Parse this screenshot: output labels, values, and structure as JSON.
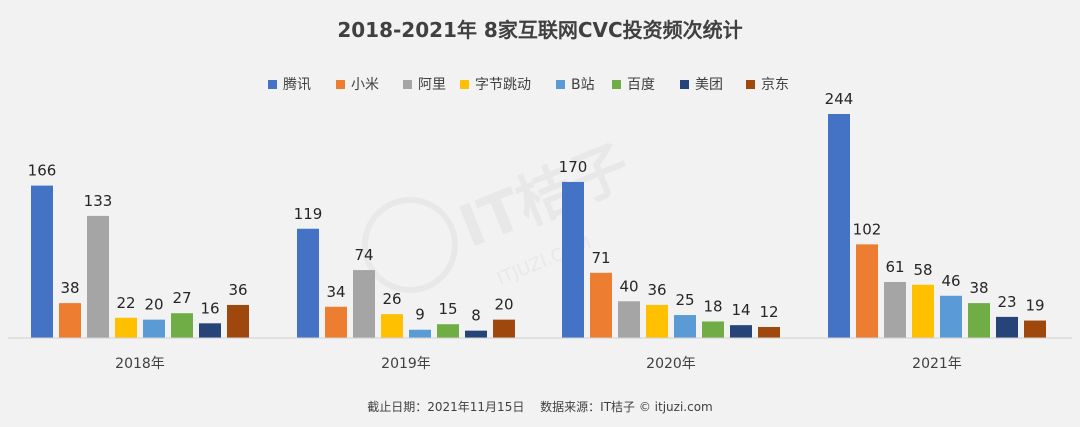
{
  "chart_data": {
    "type": "bar",
    "title": "2018-2021年 8家互联网CVC投资频次统计",
    "categories": [
      "2018年",
      "2019年",
      "2020年",
      "2021年"
    ],
    "series": [
      {
        "name": "腾讯",
        "color": "#4472c4",
        "values": [
          166,
          119,
          170,
          244
        ]
      },
      {
        "name": "小米",
        "color": "#ed7d31",
        "values": [
          38,
          34,
          71,
          102
        ]
      },
      {
        "name": "阿里",
        "color": "#a5a5a5",
        "values": [
          133,
          74,
          40,
          61
        ]
      },
      {
        "name": "字节跳动",
        "color": "#ffc000",
        "values": [
          22,
          26,
          36,
          58
        ]
      },
      {
        "name": "B站",
        "color": "#5b9bd5",
        "values": [
          20,
          9,
          25,
          46
        ]
      },
      {
        "name": "百度",
        "color": "#70ad47",
        "values": [
          27,
          15,
          18,
          38
        ]
      },
      {
        "name": "美团",
        "color": "#264478",
        "values": [
          16,
          8,
          14,
          23
        ]
      },
      {
        "name": "京东",
        "color": "#9e480e",
        "values": [
          36,
          20,
          12,
          19
        ]
      }
    ],
    "ylim": [
      0,
      244
    ],
    "grid": false,
    "legend": "top"
  },
  "footer": {
    "date": "截止日期：2021年11月15日",
    "source": "数据来源：IT桔子 © itjuzi.com"
  },
  "watermark": {
    "text": "IT桔子",
    "subtext": "ITJUZI.COM"
  }
}
